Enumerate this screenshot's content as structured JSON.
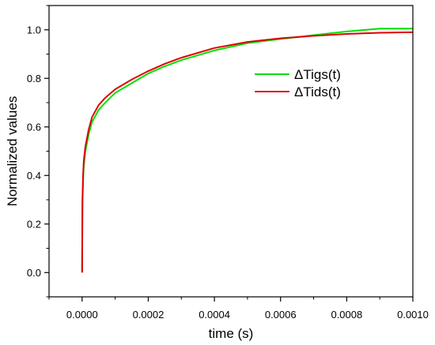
{
  "chart_data": {
    "type": "line",
    "xlabel": "time (s)",
    "ylabel": "Normalized values",
    "xlim": [
      -0.0001,
      0.001
    ],
    "ylim": [
      -0.1,
      1.1
    ],
    "xticks": [
      0.0,
      0.0002,
      0.0004,
      0.0006,
      0.0008,
      0.001
    ],
    "xtick_labels": [
      "0.0000",
      "0.0002",
      "0.0004",
      "0.0006",
      "0.0008",
      "0.0010"
    ],
    "yticks": [
      0.0,
      0.2,
      0.4,
      0.6,
      0.8,
      1.0
    ],
    "ytick_labels": [
      "0.0",
      "0.2",
      "0.4",
      "0.6",
      "0.8",
      "1.0"
    ],
    "grid": false,
    "legend_position": "top-right",
    "series": [
      {
        "name": "ΔTigs(t)",
        "color": "#00e000",
        "x": [
          0.0,
          1e-06,
          3e-06,
          5e-06,
          1e-05,
          2e-05,
          3e-05,
          5e-05,
          7e-05,
          0.0001,
          0.00015,
          0.0002,
          0.00025,
          0.0003,
          0.0004,
          0.0005,
          0.0006,
          0.0007,
          0.0008,
          0.0009,
          0.001
        ],
        "y": [
          0.0,
          0.28,
          0.38,
          0.44,
          0.5,
          0.57,
          0.62,
          0.67,
          0.7,
          0.74,
          0.78,
          0.82,
          0.85,
          0.875,
          0.915,
          0.945,
          0.962,
          0.978,
          0.993,
          1.005,
          1.005
        ]
      },
      {
        "name": "ΔTids(t)",
        "color": "#e00000",
        "x": [
          0.0,
          1e-06,
          3e-06,
          5e-06,
          1e-05,
          2e-05,
          3e-05,
          5e-05,
          7e-05,
          0.0001,
          0.00015,
          0.0002,
          0.00025,
          0.0003,
          0.0004,
          0.0005,
          0.0006,
          0.0007,
          0.0008,
          0.0009,
          0.001
        ],
        "y": [
          0.0,
          0.3,
          0.4,
          0.46,
          0.52,
          0.59,
          0.64,
          0.69,
          0.72,
          0.755,
          0.795,
          0.83,
          0.86,
          0.885,
          0.925,
          0.95,
          0.965,
          0.975,
          0.983,
          0.988,
          0.99
        ]
      }
    ]
  }
}
